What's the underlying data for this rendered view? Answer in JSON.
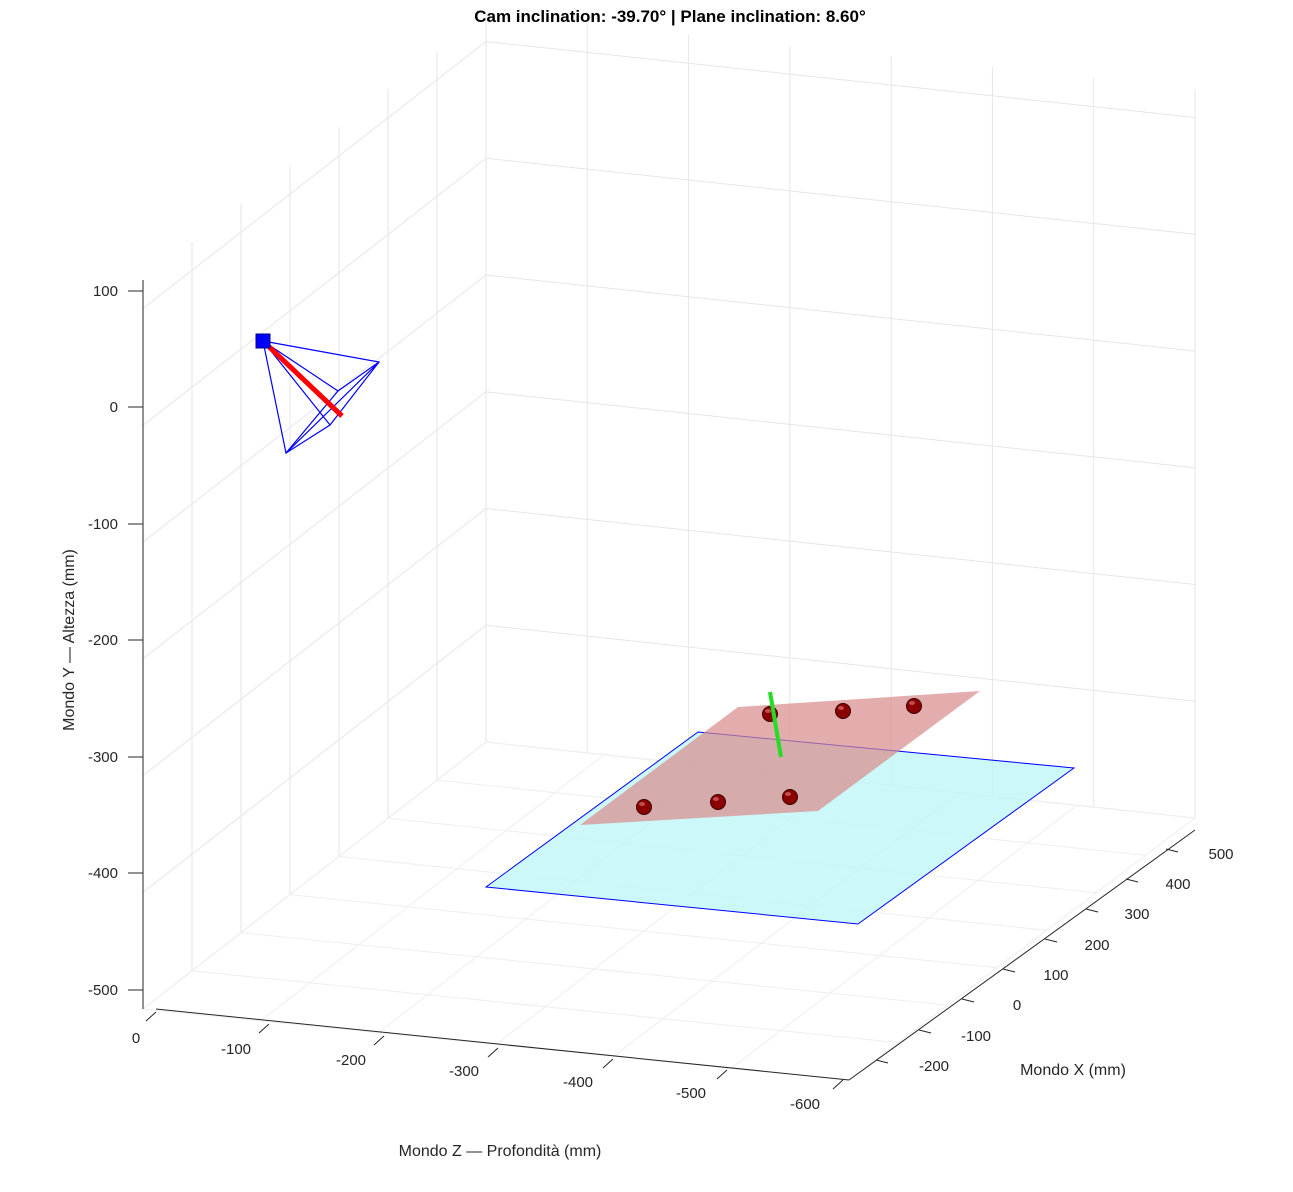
{
  "chart_data": {
    "type": "scatter",
    "title": "Cam inclination: -39.70°  |  Plane inclination: 8.60°",
    "xlabel": "Mondo X (mm)",
    "ylabel": "Mondo Y — Altezza (mm)",
    "zlabel": "Mondo Z — Profondità (mm)",
    "x_ticks": [
      "-200",
      "-100",
      "0",
      "100",
      "200",
      "300",
      "400",
      "500"
    ],
    "y_ticks": [
      "100",
      "0",
      "-100",
      "-200",
      "-300",
      "-400",
      "-500"
    ],
    "z_ticks": [
      "0",
      "-100",
      "-200",
      "-300",
      "-400",
      "-500",
      "-600"
    ],
    "xlim": [
      -240,
      530
    ],
    "ylim": [
      -520,
      110
    ],
    "zlim": [
      20,
      -625
    ],
    "grid": true,
    "colors": {
      "camera": "#0000ff",
      "camera_axis": "#ff0000",
      "ground_plane": "#bff6f8",
      "inclined_plane": "#d88a8a",
      "markers": "#8b0000",
      "normal": "#22dd22"
    }
  }
}
